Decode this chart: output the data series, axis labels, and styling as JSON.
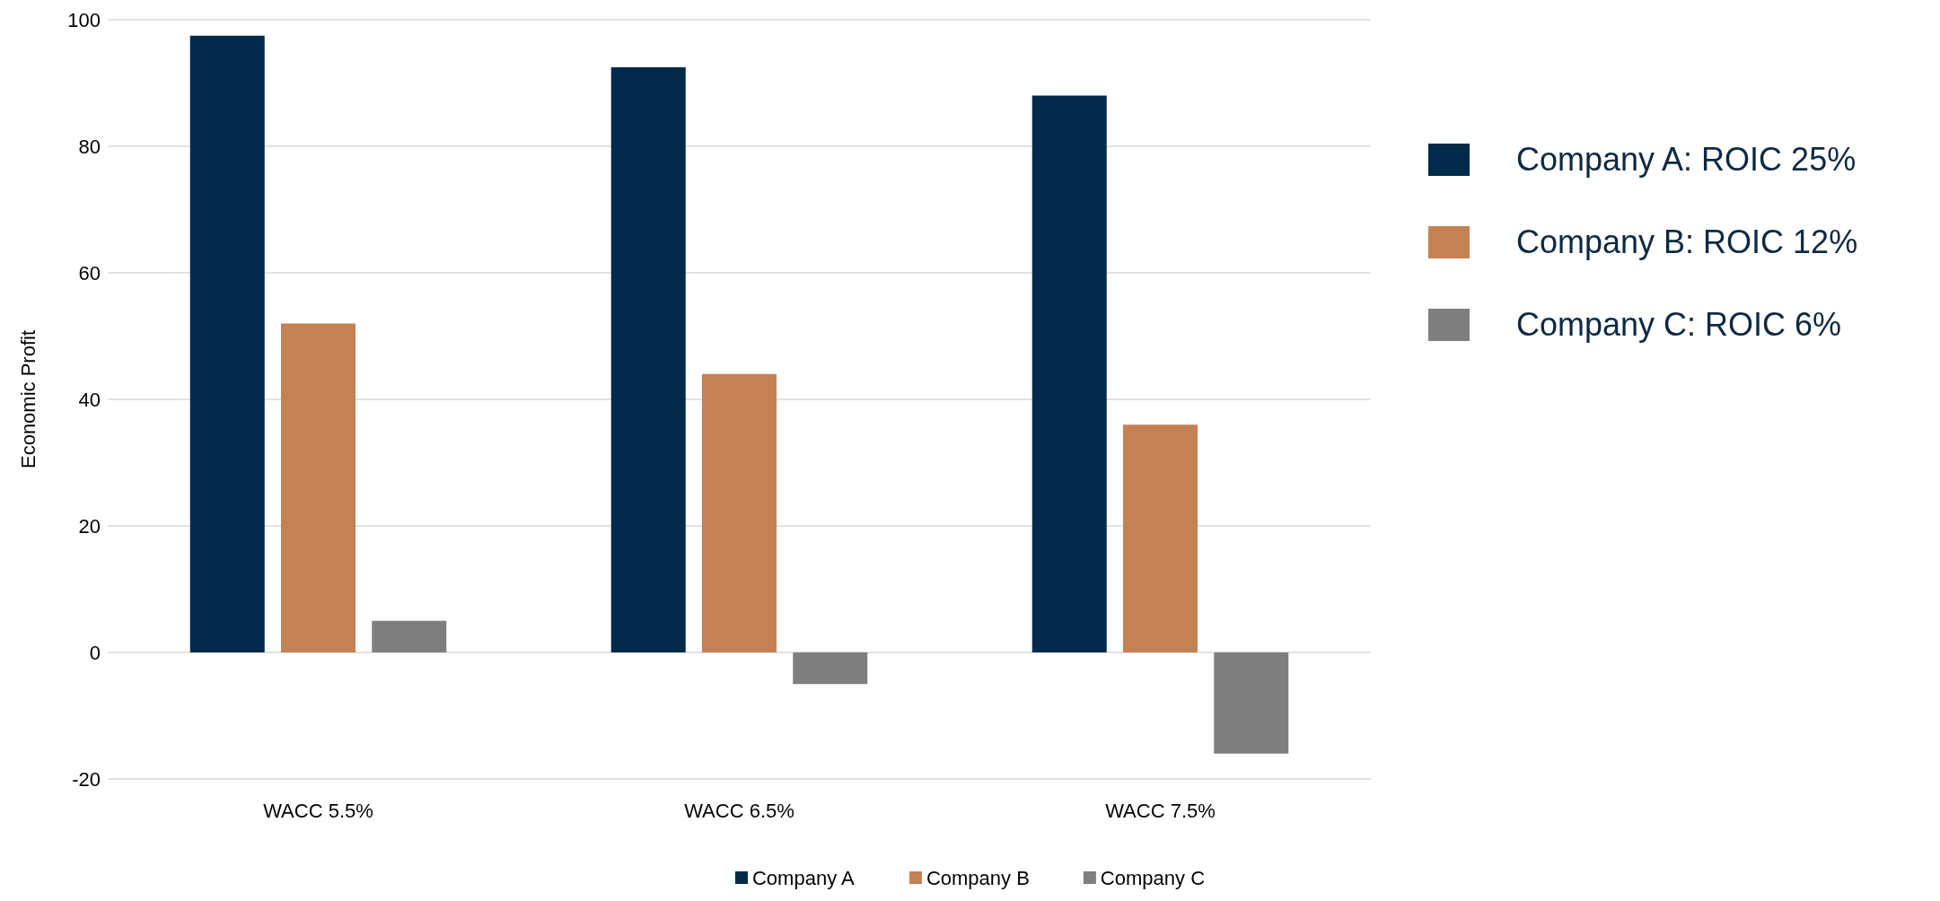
{
  "chart_data": {
    "type": "bar",
    "ylabel": "Economic Profit",
    "categories": [
      "WACC 5.5%",
      "WACC 6.5%",
      "WACC 7.5%"
    ],
    "series": [
      {
        "name": "Company A",
        "color": "#002a4a",
        "values": [
          97.5,
          92.5,
          88
        ]
      },
      {
        "name": "Company B",
        "color": "#c48153",
        "values": [
          52,
          44,
          36
        ]
      },
      {
        "name": "Company C",
        "color": "#7f7f7f",
        "values": [
          5,
          -5,
          -16
        ]
      }
    ],
    "annotations": [
      "Company A: ROIC 25%",
      "Company B: ROIC 12%",
      "Company C: ROIC 6%"
    ],
    "ylim": [
      -20,
      100
    ],
    "yticks": [
      -20,
      0,
      20,
      40,
      60,
      80,
      100
    ],
    "grid": "y",
    "legend": "bottom"
  }
}
